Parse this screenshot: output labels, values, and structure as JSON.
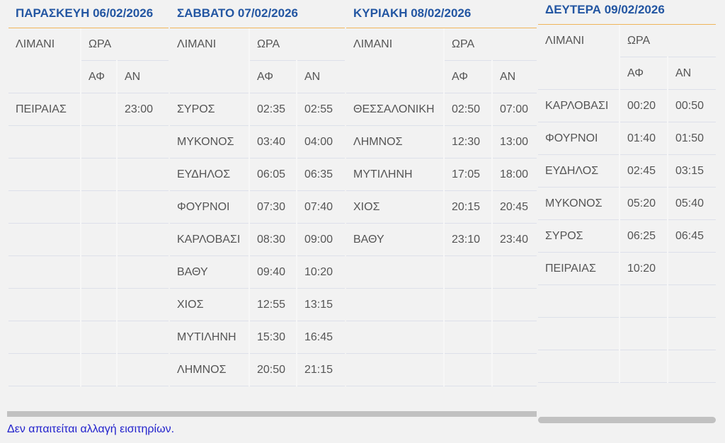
{
  "headers": {
    "port": "ΛΙΜΑΝΙ",
    "time": "ΩΡΑ",
    "dep": "ΑΦ",
    "arr": "ΑΝ"
  },
  "days": [
    {
      "title": "ΠΑΡΑΣΚΕΥΗ 06/02/2026",
      "rows": [
        [
          "ΠΕΙΡΑΙΑΣ",
          "",
          "23:00"
        ],
        [
          "",
          "",
          ""
        ],
        [
          "",
          "",
          ""
        ],
        [
          "",
          "",
          ""
        ],
        [
          "",
          "",
          ""
        ],
        [
          "",
          "",
          ""
        ],
        [
          "",
          "",
          ""
        ],
        [
          "",
          "",
          ""
        ],
        [
          "",
          "",
          ""
        ]
      ]
    },
    {
      "title": "ΣΑΒΒΑΤΟ 07/02/2026",
      "rows": [
        [
          "ΣΥΡΟΣ",
          "02:35",
          "02:55"
        ],
        [
          "ΜΥΚΟΝΟΣ",
          "03:40",
          "04:00"
        ],
        [
          "ΕΥΔΗΛΟΣ",
          "06:05",
          "06:35"
        ],
        [
          "ΦΟΥΡΝΟΙ",
          "07:30",
          "07:40"
        ],
        [
          "ΚΑΡΛΟΒΑΣΙ",
          "08:30",
          "09:00"
        ],
        [
          "ΒΑΘΥ",
          "09:40",
          "10:20"
        ],
        [
          "ΧΙΟΣ",
          "12:55",
          "13:15"
        ],
        [
          "ΜΥΤΙΛΗΝΗ",
          "15:30",
          "16:45"
        ],
        [
          "ΛΗΜΝΟΣ",
          "20:50",
          "21:15"
        ]
      ]
    },
    {
      "title": "ΚΥΡΙΑΚΗ 08/02/2026",
      "rows": [
        [
          "ΘΕΣΣΑΛΟΝΙΚΗ",
          "02:50",
          "07:00"
        ],
        [
          "ΛΗΜΝΟΣ",
          "12:30",
          "13:00"
        ],
        [
          "ΜΥΤΙΛΗΝΗ",
          "17:05",
          "18:00"
        ],
        [
          "ΧΙΟΣ",
          "20:15",
          "20:45"
        ],
        [
          "ΒΑΘΥ",
          "23:10",
          "23:40"
        ],
        [
          "",
          "",
          ""
        ],
        [
          "",
          "",
          ""
        ],
        [
          "",
          "",
          ""
        ],
        [
          "",
          "",
          ""
        ]
      ]
    },
    {
      "title": "ΔΕΥΤΕΡΑ 09/02/2026",
      "rows": [
        [
          "ΚΑΡΛΟΒΑΣΙ",
          "00:20",
          "00:50"
        ],
        [
          "ΦΟΥΡΝΟΙ",
          "01:40",
          "01:50"
        ],
        [
          "ΕΥΔΗΛΟΣ",
          "02:45",
          "03:15"
        ],
        [
          "ΜΥΚΟΝΟΣ",
          "05:20",
          "05:40"
        ],
        [
          "ΣΥΡΟΣ",
          "06:25",
          "06:45"
        ],
        [
          "ΠΕΙΡΑΙΑΣ",
          "10:20",
          ""
        ],
        [
          "",
          "",
          ""
        ],
        [
          "",
          "",
          ""
        ],
        [
          "",
          "",
          ""
        ]
      ]
    }
  ],
  "footer": "Δεν απαιτείται αλλαγή εισιτηρίων.",
  "colors": {
    "title": "#2356a2",
    "title_border": "#efb45a",
    "footer": "#2222cc"
  }
}
